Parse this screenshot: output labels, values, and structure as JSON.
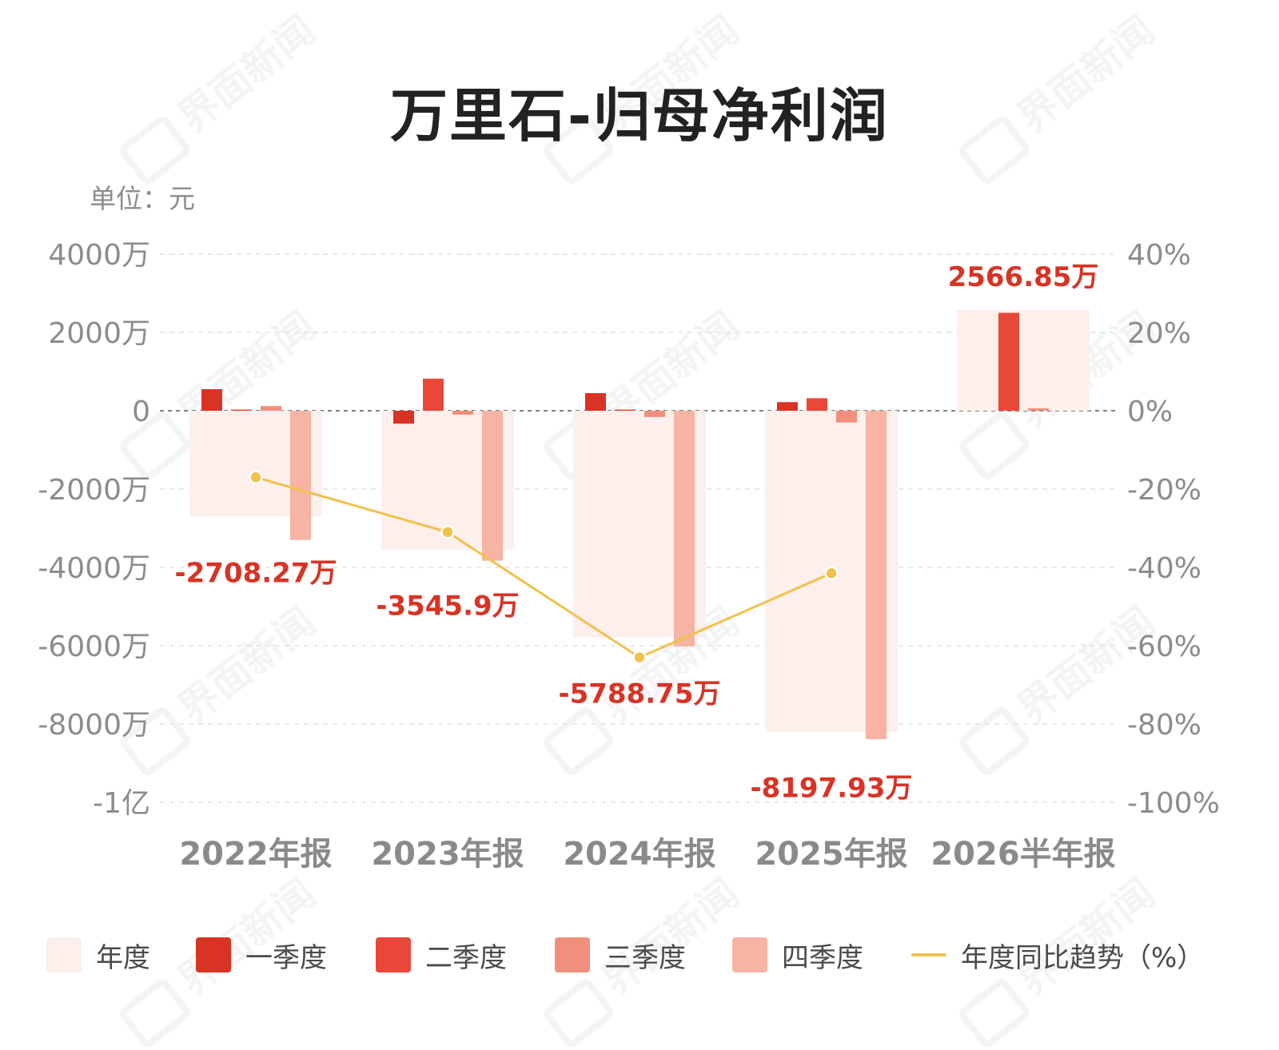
{
  "title": "万里石-归母净利润",
  "unit_label": "单位：元",
  "watermark": "界面新闻",
  "colors": {
    "annual_fill": "#fdefeb",
    "q1": "#d83324",
    "q2": "#e9473a",
    "q3": "#f0907c",
    "q4": "#f7b3a4",
    "trend": "#f0c24c",
    "value_label": "#d83324",
    "axis_text": "#8c8c8c"
  },
  "legend": [
    {
      "key": "annual",
      "label": "年度",
      "kind": "box"
    },
    {
      "key": "q1",
      "label": "一季度",
      "kind": "box"
    },
    {
      "key": "q2",
      "label": "二季度",
      "kind": "box"
    },
    {
      "key": "q3",
      "label": "三季度",
      "kind": "box"
    },
    {
      "key": "q4",
      "label": "四季度",
      "kind": "box"
    },
    {
      "key": "trend",
      "label": "年度同比趋势（%）",
      "kind": "line"
    }
  ],
  "chart_data": {
    "type": "bar",
    "title": "万里石-归母净利润",
    "unit": "元",
    "categories": [
      "2022年报",
      "2023年报",
      "2024年报",
      "2025年报",
      "2026半年报"
    ],
    "ylim": [
      -100000000,
      40000000
    ],
    "y_ticks": [
      40000000,
      20000000,
      0,
      -20000000,
      -40000000,
      -60000000,
      -80000000,
      -100000000
    ],
    "y_tick_labels": [
      "4000万",
      "2000万",
      "0",
      "-2000万",
      "-4000万",
      "-6000万",
      "-8000万",
      "-1亿"
    ],
    "y2lim": [
      -100,
      40
    ],
    "y2_ticks": [
      40,
      20,
      0,
      -20,
      -40,
      -60,
      -80,
      -100
    ],
    "y2_tick_labels": [
      "40%",
      "20%",
      "0%",
      "-20%",
      "-40%",
      "-60%",
      "-80%",
      "-100%"
    ],
    "grid": true,
    "legend_position": "bottom",
    "series": [
      {
        "name": "年度",
        "values": [
          -27082700,
          -35459000,
          -57887500,
          -81979300,
          25668500
        ]
      },
      {
        "name": "一季度",
        "values": [
          5500000,
          -3300000,
          4500000,
          2200000,
          null
        ]
      },
      {
        "name": "二季度",
        "values": [
          200000,
          8200000,
          0,
          3200000,
          25000000
        ]
      },
      {
        "name": "三季度",
        "values": [
          1200000,
          -1000000,
          -1600000,
          -3000000,
          600000
        ]
      },
      {
        "name": "四季度",
        "values": [
          -33000000,
          -38300000,
          -60200000,
          -83900000,
          null
        ]
      }
    ],
    "annual_labels": [
      "-2708.27万",
      "-3545.9万",
      "-5788.75万",
      "-8197.93万",
      "2566.85万"
    ],
    "trend": {
      "name": "年度同比趋势（%）",
      "values": [
        -17,
        -31,
        -63,
        -41.5,
        null
      ]
    }
  }
}
